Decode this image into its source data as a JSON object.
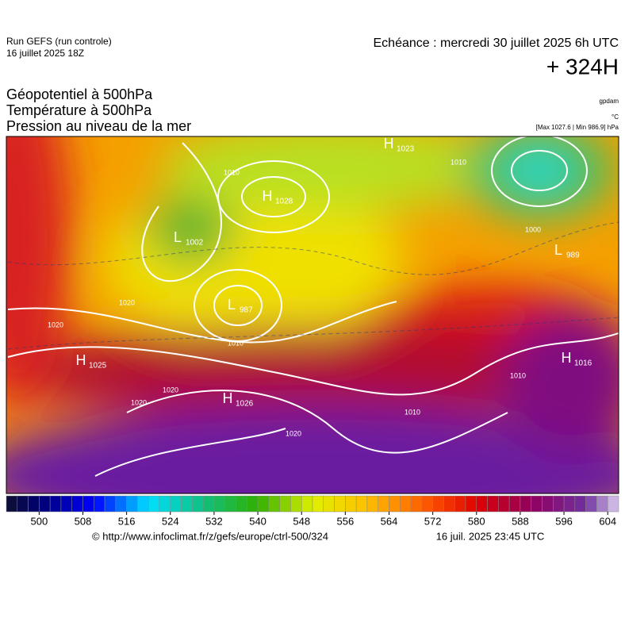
{
  "header": {
    "run": "Run GEFS (run controle)",
    "run_date": "16 juillet 2025 18Z",
    "valid": "Echéance : mercredi 30 juillet 2025 6h UTC",
    "lead": "+ 324H"
  },
  "titles": [
    "Géopotentiel à 500hPa",
    "Température à 500hPa",
    "Pression au niveau de la mer"
  ],
  "units": {
    "geopotential": "gpdam",
    "temperature": "°C",
    "pressure": "[Max 1027.6 | Min 986.9] hPa"
  },
  "centers": [
    {
      "type": "H",
      "value": 1023
    },
    {
      "type": "H",
      "value": 1028
    },
    {
      "type": "L",
      "value": 1002
    },
    {
      "type": "L",
      "value": 987
    },
    {
      "type": "H",
      "value": 1025
    },
    {
      "type": "H",
      "value": 1026
    },
    {
      "type": "L",
      "value": 989
    },
    {
      "type": "H",
      "value": 1016
    }
  ],
  "isobar_labels": [
    1020,
    1010,
    1020,
    1020,
    1020,
    1010,
    1010,
    1010,
    1010,
    1000,
    1020
  ],
  "colorbar": {
    "range": [
      494,
      606
    ],
    "step": 2,
    "ticks": [
      500,
      508,
      516,
      524,
      532,
      540,
      548,
      556,
      564,
      572,
      580,
      588,
      596,
      604
    ],
    "stops": [
      [
        494,
        "#101030"
      ],
      [
        500,
        "#000070"
      ],
      [
        510,
        "#0000ff"
      ],
      [
        520,
        "#00e0ff"
      ],
      [
        530,
        "#10c080"
      ],
      [
        540,
        "#30b000"
      ],
      [
        550,
        "#e0f000"
      ],
      [
        560,
        "#ffc000"
      ],
      [
        570,
        "#ff6000"
      ],
      [
        580,
        "#e00000"
      ],
      [
        590,
        "#900060"
      ],
      [
        600,
        "#7030a0"
      ],
      [
        606,
        "#e0d0f0"
      ]
    ]
  },
  "footer": {
    "source": "© http://www.infoclimat.fr/z/gefs/europe/ctrl-500/324",
    "generated": "16 juil. 2025 23:45 UTC"
  }
}
